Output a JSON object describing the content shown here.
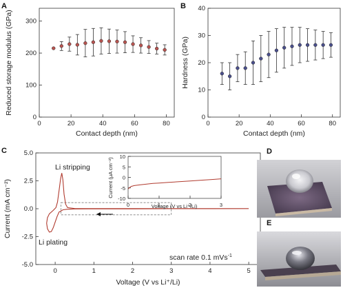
{
  "panels": {
    "A": "A",
    "B": "B",
    "C": "C",
    "D": "D",
    "E": "E"
  },
  "chart_data": [
    {
      "id": "A",
      "type": "scatter",
      "xlabel": "Contact depth (nm)",
      "ylabel": "Reduced storage modulus (GPa)",
      "xlim": [
        0,
        85
      ],
      "ylim": [
        0,
        340
      ],
      "xticks": [
        0,
        20,
        40,
        60,
        80
      ],
      "yticks": [
        0,
        100,
        200,
        300
      ],
      "marker_color": "#b85450",
      "points": [
        {
          "x": 9,
          "y": 215,
          "err": 0
        },
        {
          "x": 14,
          "y": 222,
          "err": 14
        },
        {
          "x": 19,
          "y": 228,
          "err": 22
        },
        {
          "x": 24,
          "y": 226,
          "err": 32
        },
        {
          "x": 29,
          "y": 231,
          "err": 43
        },
        {
          "x": 34,
          "y": 234,
          "err": 43
        },
        {
          "x": 39,
          "y": 238,
          "err": 41
        },
        {
          "x": 44,
          "y": 237,
          "err": 38
        },
        {
          "x": 49,
          "y": 236,
          "err": 36
        },
        {
          "x": 54,
          "y": 234,
          "err": 33
        },
        {
          "x": 59,
          "y": 228,
          "err": 26
        },
        {
          "x": 64,
          "y": 224,
          "err": 24
        },
        {
          "x": 69,
          "y": 219,
          "err": 20
        },
        {
          "x": 74,
          "y": 214,
          "err": 17
        },
        {
          "x": 79,
          "y": 210,
          "err": 16
        }
      ]
    },
    {
      "id": "B",
      "type": "scatter",
      "xlabel": "Contact depth (nm)",
      "ylabel": "Hardness (GPa)",
      "xlim": [
        0,
        85
      ],
      "ylim": [
        0,
        40
      ],
      "xticks": [
        0,
        20,
        40,
        60,
        80
      ],
      "yticks": [
        0,
        10,
        20,
        30,
        40
      ],
      "marker_color": "#4a4f8c",
      "points": [
        {
          "x": 9,
          "y": 16,
          "err": 4
        },
        {
          "x": 14,
          "y": 15,
          "err": 5
        },
        {
          "x": 19,
          "y": 18,
          "err": 5
        },
        {
          "x": 24,
          "y": 18,
          "err": 6
        },
        {
          "x": 29,
          "y": 20,
          "err": 8
        },
        {
          "x": 34,
          "y": 21.5,
          "err": 8.5
        },
        {
          "x": 39,
          "y": 23,
          "err": 8.5
        },
        {
          "x": 44,
          "y": 24.5,
          "err": 8
        },
        {
          "x": 49,
          "y": 25.5,
          "err": 7.5
        },
        {
          "x": 54,
          "y": 26,
          "err": 7
        },
        {
          "x": 59,
          "y": 26.5,
          "err": 6.5
        },
        {
          "x": 64,
          "y": 26.5,
          "err": 6
        },
        {
          "x": 69,
          "y": 26.5,
          "err": 5.5
        },
        {
          "x": 74,
          "y": 26.5,
          "err": 5
        },
        {
          "x": 79,
          "y": 26.5,
          "err": 4.5
        }
      ]
    },
    {
      "id": "C",
      "type": "line",
      "xlabel": "Voltage (V vs Li⁺/Li)",
      "ylabel": "Current (mA cm⁻²)",
      "xlim": [
        -0.5,
        5.3
      ],
      "ylim": [
        -5.0,
        5.0
      ],
      "xticks": [
        0,
        1,
        2,
        3,
        4,
        5
      ],
      "yticks": [
        -5.0,
        -2.5,
        0.0,
        2.5,
        5.0
      ],
      "ytick_labels": [
        "-5.0",
        "-2.5",
        "0.0",
        "2.5",
        "5.0"
      ],
      "line_color": "#b03a2e",
      "curve": [
        [
          5.0,
          0.01
        ],
        [
          4.0,
          0.0
        ],
        [
          3.0,
          0.0
        ],
        [
          2.0,
          -0.01
        ],
        [
          1.0,
          -0.01
        ],
        [
          0.5,
          -0.02
        ],
        [
          0.3,
          -0.05
        ],
        [
          0.2,
          -0.1
        ],
        [
          0.1,
          -0.3
        ],
        [
          0.05,
          -0.7
        ],
        [
          0.0,
          -1.2
        ],
        [
          -0.05,
          -1.7
        ],
        [
          -0.1,
          -2.05
        ],
        [
          -0.15,
          -2.1
        ],
        [
          -0.2,
          -1.8
        ],
        [
          -0.22,
          -1.3
        ],
        [
          -0.2,
          -0.8
        ],
        [
          -0.15,
          -0.45
        ],
        [
          -0.05,
          -0.15
        ],
        [
          0.02,
          0.1
        ],
        [
          0.06,
          0.6
        ],
        [
          0.1,
          1.6
        ],
        [
          0.14,
          2.7
        ],
        [
          0.17,
          3.2
        ],
        [
          0.2,
          2.6
        ],
        [
          0.23,
          1.3
        ],
        [
          0.27,
          0.4
        ],
        [
          0.32,
          0.1
        ],
        [
          0.5,
          0.02
        ],
        [
          1.0,
          0.01
        ],
        [
          2.0,
          0.01
        ],
        [
          3.0,
          0.01
        ],
        [
          4.0,
          0.01
        ],
        [
          5.0,
          0.01
        ]
      ],
      "annotations": {
        "stripping": "Li stripping",
        "plating": "Li plating",
        "scan_rate_prefix": "scan rate 0.1 mVs",
        "scan_rate_sup": "-1"
      },
      "zoom_box": {
        "x0": 0.15,
        "x1": 3.0,
        "y0": -0.55,
        "y1": 0.55
      },
      "inset": {
        "xlabel": "Voltage (V vs Li⁺/Li)",
        "ylabel": "Current (μA cm⁻²)",
        "xlim": [
          0,
          3
        ],
        "ylim": [
          -10,
          10
        ],
        "xticks": [
          0,
          1,
          2,
          3
        ],
        "yticks": [
          -10,
          -5,
          0,
          5,
          10
        ],
        "curve": [
          [
            0.0,
            -5.5
          ],
          [
            0.05,
            -4.8
          ],
          [
            0.1,
            -4.3
          ],
          [
            0.2,
            -3.9
          ],
          [
            0.4,
            -3.5
          ],
          [
            0.6,
            -3.2
          ],
          [
            0.8,
            -2.9
          ],
          [
            1.0,
            -2.7
          ],
          [
            1.3,
            -2.4
          ],
          [
            1.6,
            -2.1
          ],
          [
            2.0,
            -1.7
          ],
          [
            2.4,
            -1.3
          ],
          [
            2.7,
            -1.0
          ],
          [
            3.0,
            -0.7
          ]
        ]
      }
    }
  ],
  "photos": [
    {
      "id": "D",
      "object": "droplet-on-substrate-top-view"
    },
    {
      "id": "E",
      "object": "droplet-on-substrate-side-view"
    }
  ]
}
